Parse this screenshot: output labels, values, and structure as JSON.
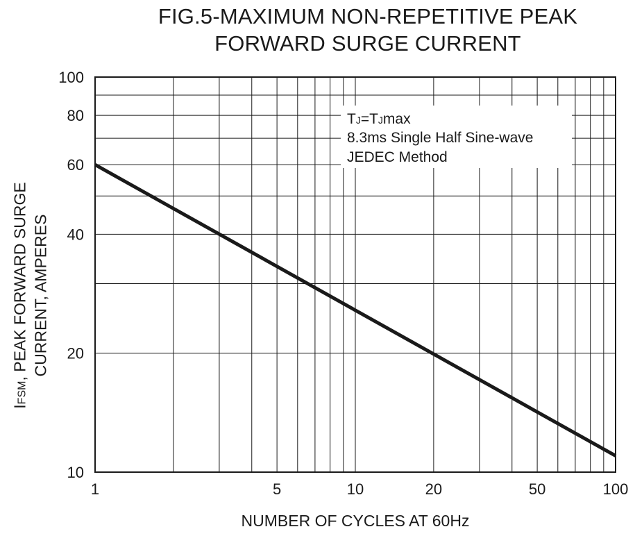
{
  "chart_data": {
    "type": "line",
    "title": [
      "FIG.5-MAXIMUM NON-REPETITIVE PEAK",
      "FORWARD SURGE CURRENT"
    ],
    "xlabel": "NUMBER OF CYCLES AT 60Hz",
    "ylabel": {
      "symbol_main": "I",
      "symbol_sub": "FSM",
      "line1_rest": ", PEAK FORWARD SURGE",
      "line2": "CURRENT, AMPERES"
    },
    "x_scale": "log",
    "y_scale": "log",
    "xlim": [
      1,
      100
    ],
    "ylim": [
      10,
      100
    ],
    "x_ticks": [
      1,
      5,
      10,
      20,
      50,
      100
    ],
    "x_tick_labels": [
      "1",
      "5",
      "10",
      "20",
      "50",
      "100"
    ],
    "y_ticks": [
      10,
      20,
      40,
      60,
      80,
      100
    ],
    "y_tick_labels": [
      "10",
      "20",
      "40",
      "60",
      "80",
      "100"
    ],
    "x_grid": [
      2,
      3,
      4,
      5,
      6,
      7,
      8,
      9,
      10,
      20,
      30,
      40,
      50,
      60,
      70,
      80,
      90
    ],
    "y_grid": [
      20,
      30,
      40,
      50,
      60,
      70,
      80,
      90
    ],
    "series": [
      {
        "name": "IFSM",
        "x": [
          1,
          100
        ],
        "y": [
          60,
          11
        ]
      }
    ],
    "annotation": {
      "tj_main_1": "T",
      "tj_sub_1": "J",
      "tj_eq": "=T",
      "tj_sub_2": "J",
      "tj_rest": "max",
      "line2": "8.3ms Single Half Sine-wave",
      "line3": "JEDEC Method"
    },
    "colors": {
      "line": "#1a1a1a",
      "grid": "#1a1a1a",
      "background": "#ffffff"
    }
  }
}
